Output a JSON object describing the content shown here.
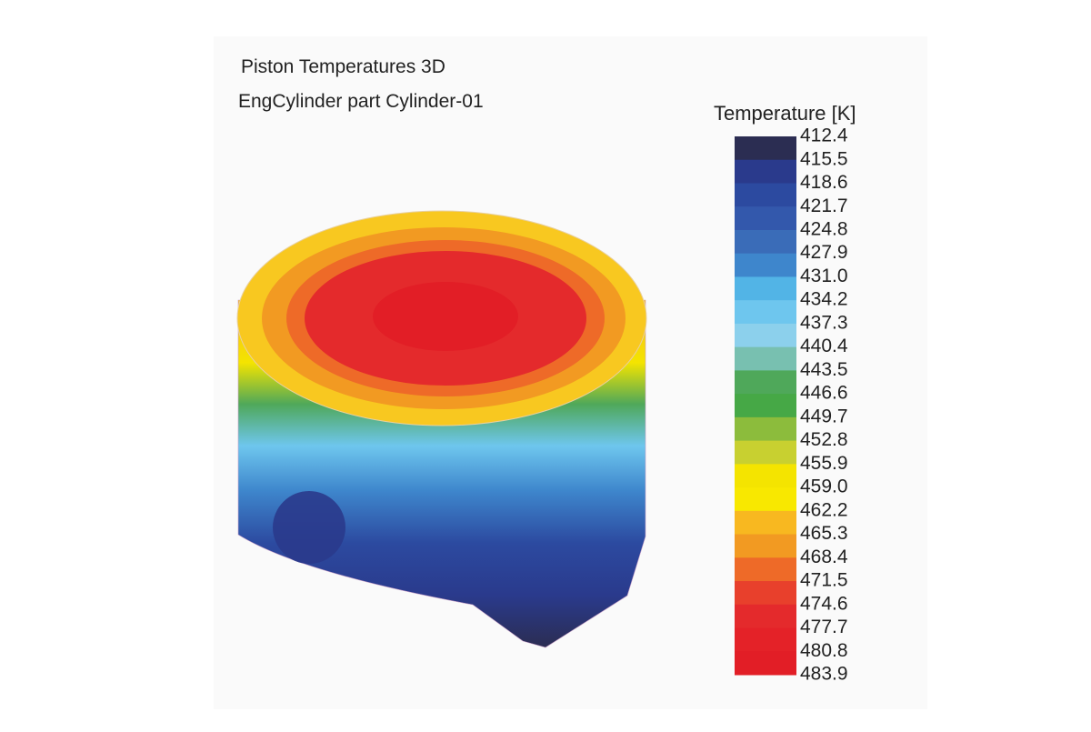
{
  "title": [
    "Piston Temperatures 3D",
    "EngCylinder part Cylinder-01"
  ],
  "legend": {
    "title": "Temperature [K]",
    "labels": [
      "412.4",
      "415.5",
      "418.6",
      "421.7",
      "424.8",
      "427.9",
      "431.0",
      "434.2",
      "437.3",
      "440.4",
      "443.5",
      "446.6",
      "449.7",
      "452.8",
      "455.9",
      "459.0",
      "462.2",
      "465.3",
      "468.4",
      "471.5",
      "474.6",
      "477.7",
      "480.8",
      "483.9"
    ],
    "colors": [
      "#2b2d52",
      "#2a3a8c",
      "#2c4aa0",
      "#3358ac",
      "#3a6cb8",
      "#3e86cc",
      "#52b4e6",
      "#6ec6ee",
      "#8cd0ec",
      "#78c0b0",
      "#4fa85a",
      "#46a846",
      "#8cbc3c",
      "#c8d030",
      "#f4e400",
      "#f8e800",
      "#f8b820",
      "#f29a22",
      "#ee6a28",
      "#e8402c",
      "#e42a2c",
      "#e42228",
      "#e21e26"
    ]
  }
}
